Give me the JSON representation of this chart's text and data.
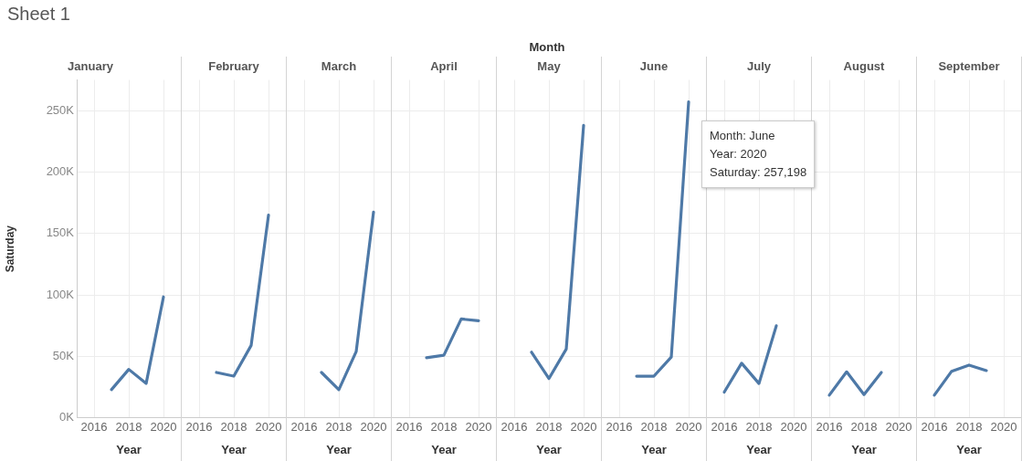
{
  "chart_data": [
    {
      "type": "other",
      "title": "Sheet 1",
      "subtitle": "Month"
    },
    {
      "type": "line",
      "title": "January",
      "xlabel": "Year",
      "ylabel": "Saturday",
      "color": "#4e79a7",
      "x": [
        2017,
        2018,
        2019,
        2020
      ],
      "values": [
        23000,
        39500,
        28000,
        98500
      ],
      "xlim": [
        2015,
        2021
      ],
      "xticks": [
        2016,
        2018,
        2020
      ],
      "ylim": [
        0,
        275000
      ],
      "yticks": [
        {
          "value": 0,
          "label": "0K"
        },
        {
          "value": 50000,
          "label": "50K"
        },
        {
          "value": 100000,
          "label": "100K"
        },
        {
          "value": 150000,
          "label": "150K"
        },
        {
          "value": 200000,
          "label": "200K"
        },
        {
          "value": 250000,
          "label": "250K"
        }
      ],
      "grid": true
    },
    {
      "type": "line",
      "title": "February",
      "xlabel": "Year",
      "color": "#4e79a7",
      "x": [
        2017,
        2018,
        2019,
        2020
      ],
      "values": [
        37000,
        34000,
        59000,
        165000
      ],
      "xlim": [
        2015,
        2021
      ],
      "xticks": [
        2016,
        2018,
        2020
      ],
      "ylim": [
        0,
        275000
      ],
      "yticks": [
        0,
        50000,
        100000,
        150000,
        200000,
        250000
      ],
      "grid": true,
      "tick_labels": "x"
    },
    {
      "type": "line",
      "title": "March",
      "xlabel": "Year",
      "color": "#4e79a7",
      "x": [
        2017,
        2018,
        2019,
        2020
      ],
      "values": [
        37000,
        23000,
        54000,
        167500
      ],
      "xlim": [
        2015,
        2021
      ],
      "xticks": [
        2016,
        2018,
        2020
      ],
      "ylim": [
        0,
        275000
      ],
      "yticks": [
        0,
        50000,
        100000,
        150000,
        200000,
        250000
      ],
      "grid": true,
      "tick_labels": "x"
    },
    {
      "type": "line",
      "title": "April",
      "xlabel": "Year",
      "color": "#4e79a7",
      "x": [
        2017,
        2018,
        2019,
        2020
      ],
      "values": [
        49000,
        51000,
        80500,
        79000
      ],
      "xlim": [
        2015,
        2021
      ],
      "xticks": [
        2016,
        2018,
        2020
      ],
      "ylim": [
        0,
        275000
      ],
      "yticks": [
        0,
        50000,
        100000,
        150000,
        200000,
        250000
      ],
      "grid": true,
      "tick_labels": "x"
    },
    {
      "type": "line",
      "title": "May",
      "xlabel": "Year",
      "color": "#4e79a7",
      "x": [
        2017,
        2018,
        2019,
        2020
      ],
      "values": [
        53500,
        32000,
        56000,
        238000
      ],
      "xlim": [
        2015,
        2021
      ],
      "xticks": [
        2016,
        2018,
        2020
      ],
      "ylim": [
        0,
        275000
      ],
      "yticks": [
        0,
        50000,
        100000,
        150000,
        200000,
        250000
      ],
      "grid": true,
      "tick_labels": "x"
    },
    {
      "type": "line",
      "title": "June",
      "xlabel": "Year",
      "color": "#4e79a7",
      "x": [
        2017,
        2018,
        2019,
        2020
      ],
      "values": [
        34000,
        34000,
        49500,
        257198
      ],
      "xlim": [
        2015,
        2021
      ],
      "xticks": [
        2016,
        2018,
        2020
      ],
      "ylim": [
        0,
        275000
      ],
      "yticks": [
        0,
        50000,
        100000,
        150000,
        200000,
        250000
      ],
      "grid": true,
      "tick_labels": "x",
      "annotations": [
        {
          "text": "Month: June\nYear: 2020\nSaturday: 257,198",
          "x": 2020,
          "y": 257198
        }
      ]
    },
    {
      "type": "line",
      "title": "July",
      "xlabel": "Year",
      "color": "#4e79a7",
      "x": [
        2016,
        2017,
        2018,
        2019
      ],
      "values": [
        21000,
        44500,
        28000,
        75000
      ],
      "xlim": [
        2015,
        2021
      ],
      "xticks": [
        2016,
        2018,
        2020
      ],
      "ylim": [
        0,
        275000
      ],
      "yticks": [
        0,
        50000,
        100000,
        150000,
        200000,
        250000
      ],
      "grid": true,
      "tick_labels": "x"
    },
    {
      "type": "line",
      "title": "August",
      "xlabel": "Year",
      "color": "#4e79a7",
      "x": [
        2016,
        2017,
        2018,
        2019
      ],
      "values": [
        18500,
        37500,
        19000,
        37000
      ],
      "xlim": [
        2015,
        2021
      ],
      "xticks": [
        2016,
        2018,
        2020
      ],
      "ylim": [
        0,
        275000
      ],
      "yticks": [
        0,
        50000,
        100000,
        150000,
        200000,
        250000
      ],
      "grid": true,
      "tick_labels": "x"
    },
    {
      "type": "line",
      "title": "September",
      "xlabel": "Year",
      "color": "#4e79a7",
      "x": [
        2016,
        2017,
        2018,
        2019
      ],
      "values": [
        18500,
        38000,
        43000,
        38500
      ],
      "xlim": [
        2015,
        2021
      ],
      "xticks": [
        2016,
        2018,
        2020
      ],
      "ylim": [
        0,
        275000
      ],
      "yticks": [
        0,
        50000,
        100000,
        150000,
        200000,
        250000
      ],
      "grid": true,
      "tick_labels": "x"
    }
  ]
}
